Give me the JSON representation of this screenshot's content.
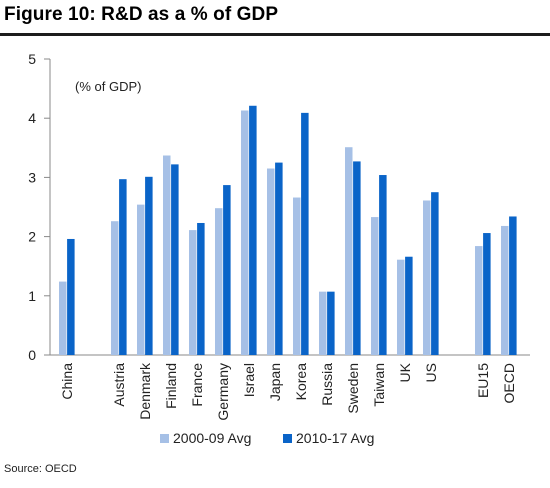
{
  "figure": {
    "title": "Figure 10: R&D as a % of GDP",
    "source": "Source: OECD"
  },
  "chart_data": {
    "type": "bar",
    "unit_label": "(% of GDP)",
    "ylim": [
      0,
      5
    ],
    "yticks": [
      "0",
      "1",
      "2",
      "3",
      "4",
      "5"
    ],
    "grid": false,
    "legend_position": "bottom",
    "categories": [
      "China",
      "Austria",
      "Denmark",
      "Finland",
      "France",
      "Germany",
      "Israel",
      "Japan",
      "Korea",
      "Russia",
      "Sweden",
      "Taiwan",
      "UK",
      "US",
      "EU15",
      "OECD"
    ],
    "series": [
      {
        "name": "2000-09 Avg",
        "color": "#a6c0e6",
        "values": [
          1.24,
          2.26,
          2.54,
          3.37,
          2.11,
          2.48,
          4.13,
          3.15,
          2.66,
          1.07,
          3.51,
          2.33,
          1.61,
          2.61,
          1.84,
          2.18
        ]
      },
      {
        "name": "2010-17 Avg",
        "color": "#0a64c8",
        "values": [
          1.96,
          2.97,
          3.01,
          3.22,
          2.23,
          2.87,
          4.21,
          3.25,
          4.09,
          1.07,
          3.27,
          3.04,
          1.66,
          2.75,
          2.06,
          2.34
        ]
      }
    ]
  }
}
